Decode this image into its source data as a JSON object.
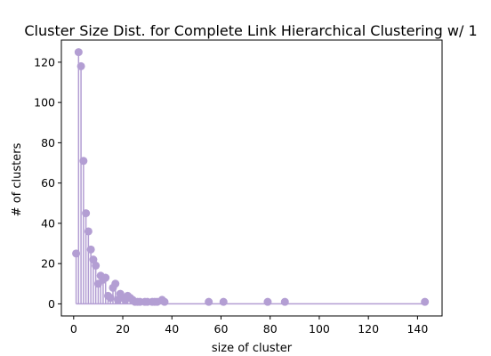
{
  "chart_data": {
    "type": "stem",
    "title": "Cluster Size Dist. for Complete Link Hierarchical Clustering w/ 1",
    "xlabel": "size of cluster",
    "ylabel": "# of clusters",
    "xlim": [
      -5,
      150
    ],
    "ylim": [
      -6,
      131
    ],
    "xticks": [
      0,
      20,
      40,
      60,
      80,
      100,
      120,
      140
    ],
    "yticks": [
      0,
      20,
      40,
      60,
      80,
      100,
      120
    ],
    "grid": false,
    "color": "#b39ed3",
    "points": [
      {
        "x": 1,
        "y": 25
      },
      {
        "x": 2,
        "y": 125
      },
      {
        "x": 3,
        "y": 118
      },
      {
        "x": 4,
        "y": 71
      },
      {
        "x": 5,
        "y": 45
      },
      {
        "x": 6,
        "y": 36
      },
      {
        "x": 7,
        "y": 27
      },
      {
        "x": 8,
        "y": 22
      },
      {
        "x": 9,
        "y": 19
      },
      {
        "x": 10,
        "y": 10
      },
      {
        "x": 11,
        "y": 14
      },
      {
        "x": 12,
        "y": 12
      },
      {
        "x": 13,
        "y": 13
      },
      {
        "x": 14,
        "y": 4
      },
      {
        "x": 15,
        "y": 3
      },
      {
        "x": 16,
        "y": 8
      },
      {
        "x": 17,
        "y": 10
      },
      {
        "x": 18,
        "y": 2
      },
      {
        "x": 19,
        "y": 5
      },
      {
        "x": 20,
        "y": 3
      },
      {
        "x": 21,
        "y": 2
      },
      {
        "x": 22,
        "y": 4
      },
      {
        "x": 23,
        "y": 3
      },
      {
        "x": 24,
        "y": 2
      },
      {
        "x": 25,
        "y": 1
      },
      {
        "x": 26,
        "y": 1
      },
      {
        "x": 27,
        "y": 1
      },
      {
        "x": 29,
        "y": 1
      },
      {
        "x": 30,
        "y": 1
      },
      {
        "x": 32,
        "y": 1
      },
      {
        "x": 33,
        "y": 1
      },
      {
        "x": 34,
        "y": 1
      },
      {
        "x": 36,
        "y": 2
      },
      {
        "x": 37,
        "y": 1
      },
      {
        "x": 55,
        "y": 1
      },
      {
        "x": 61,
        "y": 1
      },
      {
        "x": 79,
        "y": 1
      },
      {
        "x": 86,
        "y": 1
      },
      {
        "x": 143,
        "y": 1
      }
    ]
  }
}
